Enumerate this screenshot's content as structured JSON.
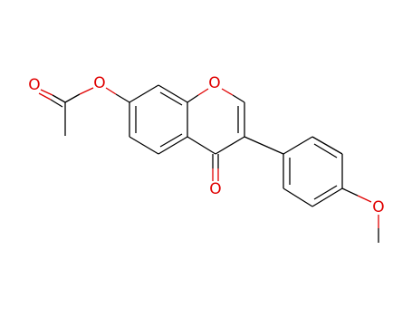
{
  "atoms": [
    {
      "label": "O"
    },
    {
      "label": "O"
    },
    {
      "label": "O"
    },
    {
      "label": "O"
    },
    {
      "label": "O"
    }
  ]
}
